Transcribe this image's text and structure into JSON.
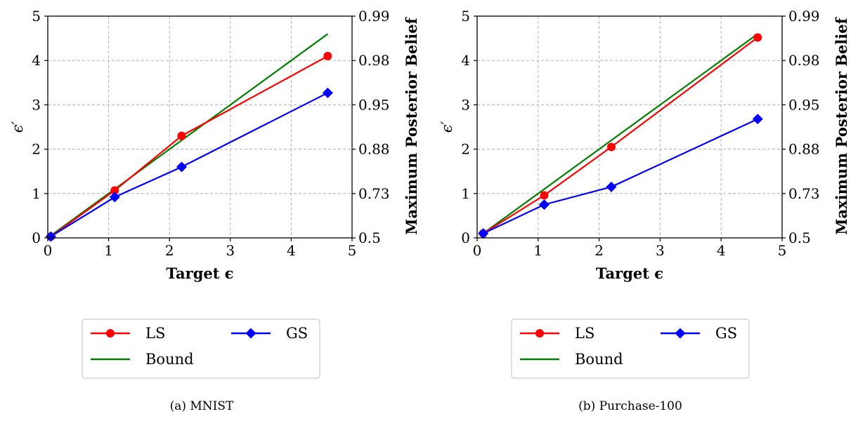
{
  "chart_data": [
    {
      "type": "line",
      "caption": "(a) MNIST",
      "xlabel": "Target ϵ",
      "ylabel": "ϵ′",
      "y2label": "Maximum Posterior Belief",
      "xlim": [
        0,
        5
      ],
      "ylim": [
        0,
        5
      ],
      "xticks": [
        "0",
        "1",
        "2",
        "3",
        "4",
        "5"
      ],
      "yticks": [
        "0",
        "1",
        "2",
        "3",
        "4",
        "5"
      ],
      "y2ticks": [
        "0.5",
        "0.73",
        "0.88",
        "0.95",
        "0.98",
        "0.99"
      ],
      "grid": true,
      "legend": {
        "placement": "below",
        "columns": 2
      },
      "series": [
        {
          "name": "LS",
          "color": "#ff0000",
          "marker": "circle",
          "x": [
            0.05,
            1.1,
            2.2,
            4.6
          ],
          "y": [
            0.03,
            1.07,
            2.3,
            4.1
          ]
        },
        {
          "name": "GS",
          "color": "#0000ff",
          "marker": "diamond",
          "x": [
            0.05,
            1.1,
            2.2,
            4.6
          ],
          "y": [
            0.03,
            0.92,
            1.6,
            3.27
          ]
        },
        {
          "name": "Bound",
          "color": "#008000",
          "marker": "none",
          "x": [
            0.05,
            4.6
          ],
          "y": [
            0.05,
            4.6
          ]
        }
      ]
    },
    {
      "type": "line",
      "caption": "(b) Purchase-100",
      "xlabel": "Target ϵ",
      "ylabel": "ϵ′",
      "y2label": "Maximum Posterior Belief",
      "xlim": [
        0,
        5
      ],
      "ylim": [
        0,
        5
      ],
      "xticks": [
        "0",
        "1",
        "2",
        "3",
        "4",
        "5"
      ],
      "yticks": [
        "0",
        "1",
        "2",
        "3",
        "4",
        "5"
      ],
      "y2ticks": [
        "0.5",
        "0.73",
        "0.88",
        "0.95",
        "0.98",
        "0.99"
      ],
      "grid": true,
      "legend": {
        "placement": "below",
        "columns": 2
      },
      "series": [
        {
          "name": "LS",
          "color": "#ff0000",
          "marker": "circle",
          "x": [
            0.1,
            1.1,
            2.2,
            4.6
          ],
          "y": [
            0.1,
            0.96,
            2.05,
            4.52
          ]
        },
        {
          "name": "GS",
          "color": "#0000ff",
          "marker": "diamond",
          "x": [
            0.1,
            1.1,
            2.2,
            4.6
          ],
          "y": [
            0.1,
            0.75,
            1.15,
            2.68
          ]
        },
        {
          "name": "Bound",
          "color": "#008000",
          "marker": "none",
          "x": [
            0.1,
            4.6
          ],
          "y": [
            0.1,
            4.6
          ]
        }
      ]
    }
  ]
}
